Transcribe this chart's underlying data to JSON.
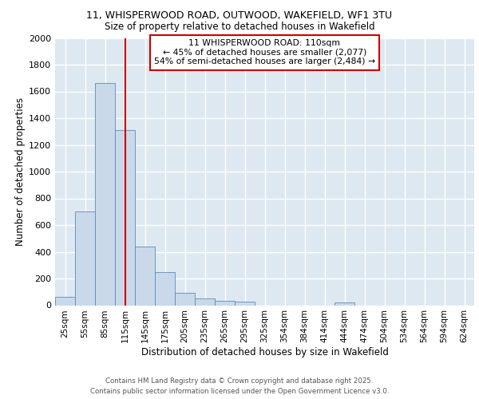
{
  "title_line1": "11, WHISPERWOOD ROAD, OUTWOOD, WAKEFIELD, WF1 3TU",
  "title_line2": "Size of property relative to detached houses in Wakefield",
  "xlabel": "Distribution of detached houses by size in Wakefield",
  "ylabel": "Number of detached properties",
  "bar_color": "#c9d9ea",
  "bar_edge_color": "#5b8db8",
  "background_color": "#dde8f0",
  "grid_color": "#ffffff",
  "categories": [
    "25sqm",
    "55sqm",
    "85sqm",
    "115sqm",
    "145sqm",
    "175sqm",
    "205sqm",
    "235sqm",
    "265sqm",
    "295sqm",
    "325sqm",
    "354sqm",
    "384sqm",
    "414sqm",
    "444sqm",
    "474sqm",
    "504sqm",
    "534sqm",
    "564sqm",
    "594sqm",
    "624sqm"
  ],
  "values": [
    65,
    700,
    1660,
    1310,
    440,
    250,
    95,
    50,
    30,
    25,
    0,
    0,
    0,
    0,
    20,
    0,
    0,
    0,
    0,
    0,
    0
  ],
  "property_line_x": 3.0,
  "annotation_text_line1": "11 WHISPERWOOD ROAD: 110sqm",
  "annotation_text_line2": "← 45% of detached houses are smaller (2,077)",
  "annotation_text_line3": "54% of semi-detached houses are larger (2,484) →",
  "annotation_box_color": "#ffffff",
  "annotation_box_edge": "#cc0000",
  "vline_color": "#cc0000",
  "footer_line1": "Contains HM Land Registry data © Crown copyright and database right 2025.",
  "footer_line2": "Contains public sector information licensed under the Open Government Licence v3.0.",
  "ylim": [
    0,
    2000
  ],
  "yticks": [
    0,
    200,
    400,
    600,
    800,
    1000,
    1200,
    1400,
    1600,
    1800,
    2000
  ]
}
